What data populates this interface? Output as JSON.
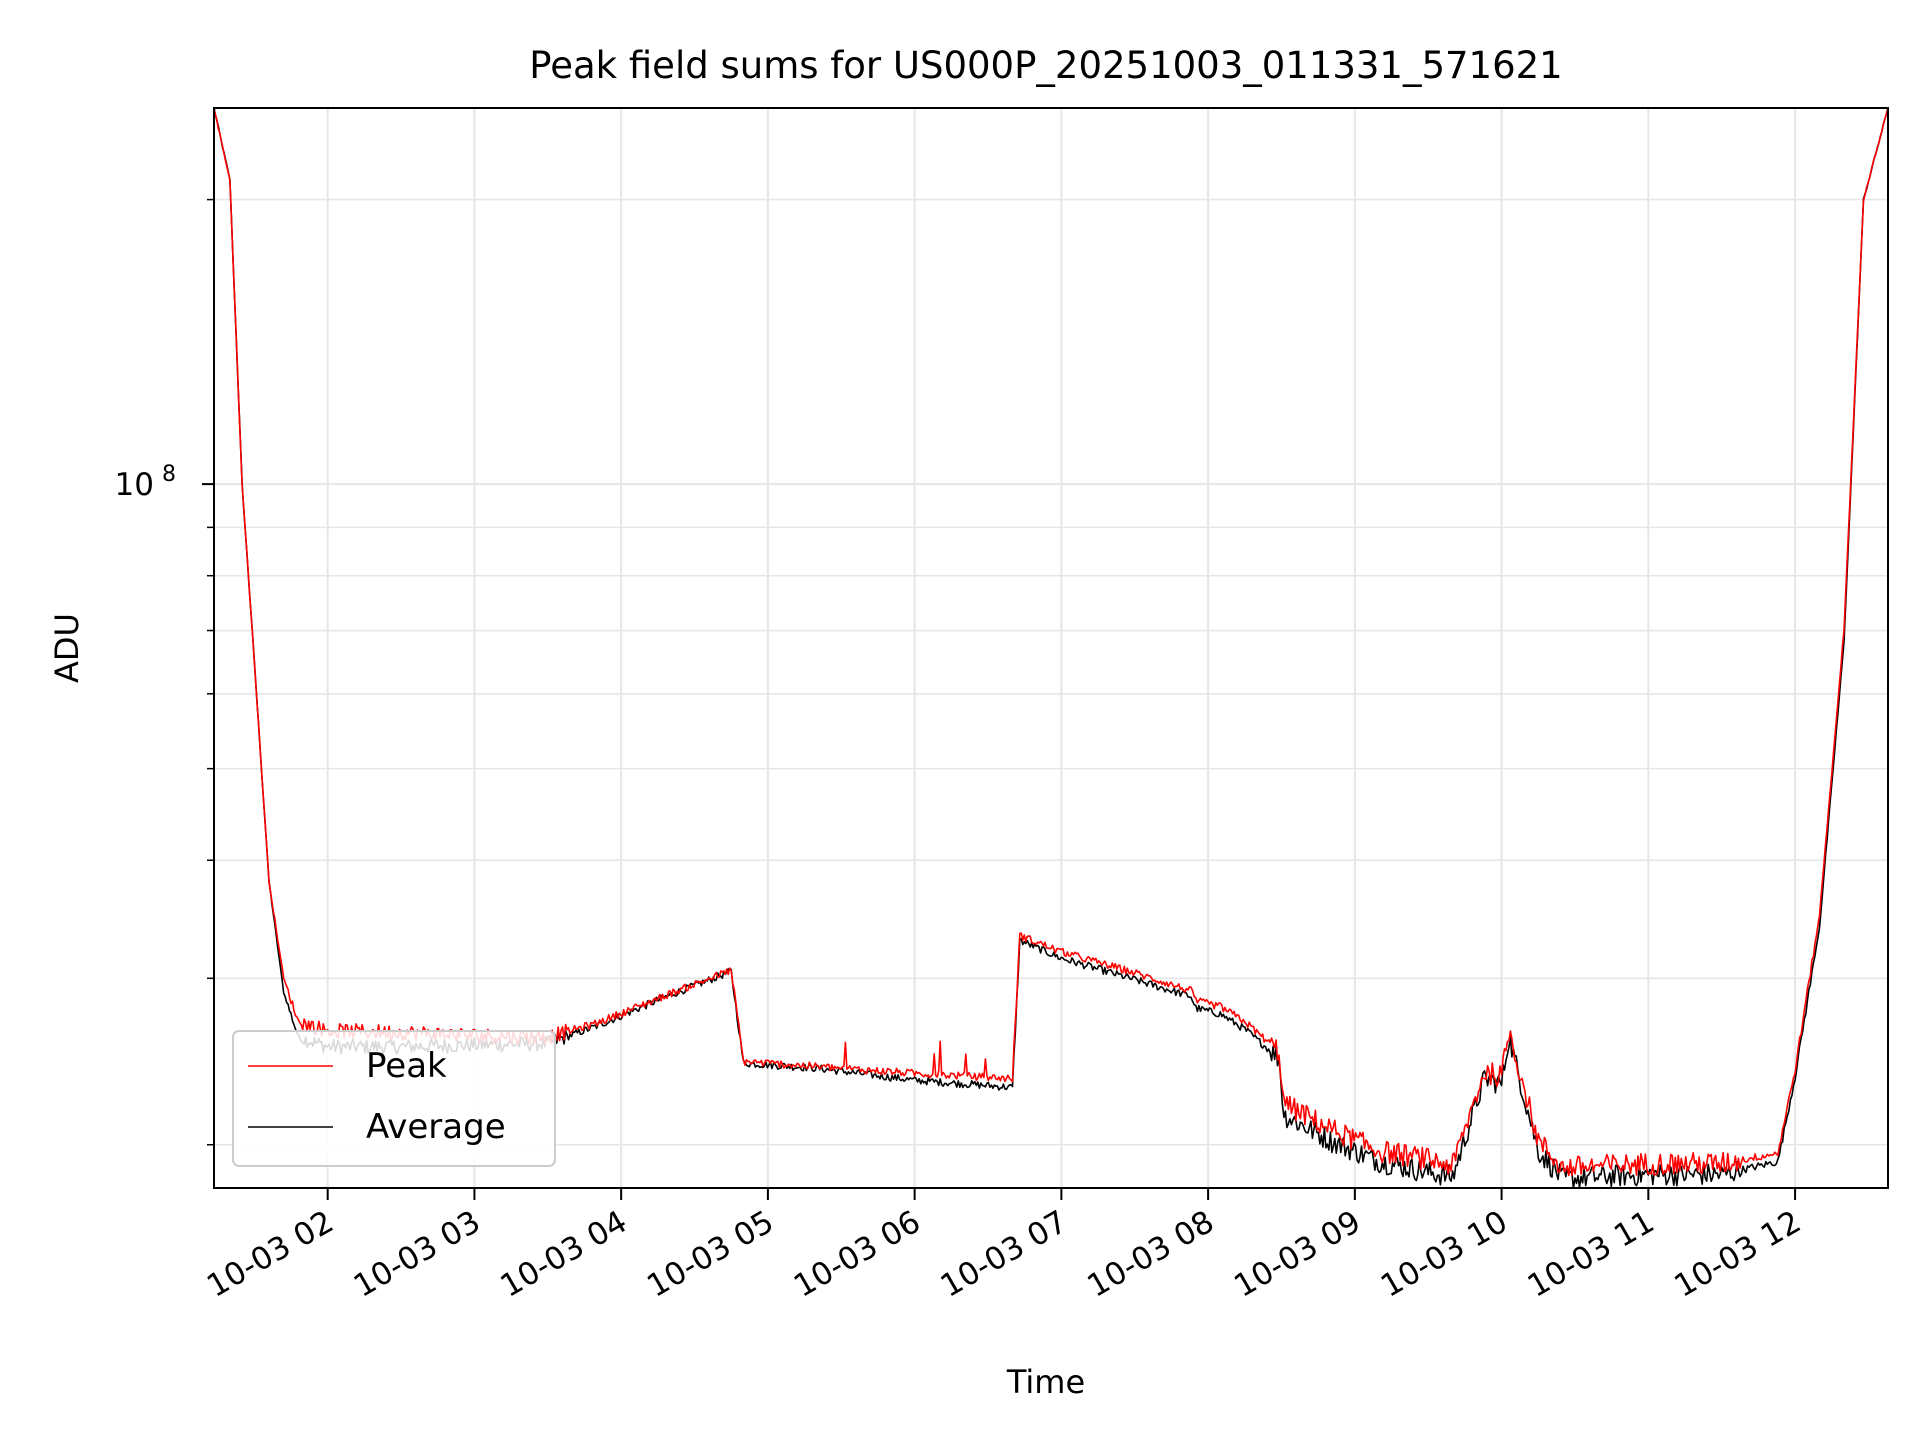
{
  "chart_data": {
    "type": "line",
    "title": "Peak field sums for US000P_20251003_011331_571621",
    "xlabel": "Time",
    "ylabel": "ADU",
    "y_scale": "log",
    "ylim": [
      18000000,
      250000000
    ],
    "xlim": [
      "2025-10-03 01:13:31",
      "2025-10-03 12:38:00"
    ],
    "grid": true,
    "legend_position": "lower-left",
    "x_tick_labels": [
      "10-03 02",
      "10-03 03",
      "10-03 04",
      "10-03 05",
      "10-03 06",
      "10-03 07",
      "10-03 08",
      "10-03 09",
      "10-03 10",
      "10-03 11",
      "10-03 12"
    ],
    "y_tick_labels": [
      {
        "value": 100000000,
        "base": "10",
        "exp": "8"
      }
    ],
    "series": [
      {
        "name": "Peak",
        "color": "#ff0000",
        "x": [
          "2025-10-03 01:13:31",
          "2025-10-03 01:20:00",
          "2025-10-03 01:25:00",
          "2025-10-03 01:30:00",
          "2025-10-03 01:36:00",
          "2025-10-03 01:42:00",
          "2025-10-03 01:48:00",
          "2025-10-03 02:00:00",
          "2025-10-03 02:30:00",
          "2025-10-03 03:00:00",
          "2025-10-03 03:30:00",
          "2025-10-03 03:50:00",
          "2025-10-03 04:20:00",
          "2025-10-03 04:45:00",
          "2025-10-03 04:50:00",
          "2025-10-03 05:20:00",
          "2025-10-03 06:00:00",
          "2025-10-03 06:40:00",
          "2025-10-03 06:43:00",
          "2025-10-03 07:00:00",
          "2025-10-03 07:30:00",
          "2025-10-03 07:53:00",
          "2025-10-03 07:55:00",
          "2025-10-03 08:05:00",
          "2025-10-03 08:15:00",
          "2025-10-03 08:29:00",
          "2025-10-03 08:31:00",
          "2025-10-03 08:50:00",
          "2025-10-03 09:10:00",
          "2025-10-03 09:30:00",
          "2025-10-03 09:40:00",
          "2025-10-03 09:53:00",
          "2025-10-03 10:00:00",
          "2025-10-03 10:03:00",
          "2025-10-03 10:15:00",
          "2025-10-03 10:25:00",
          "2025-10-03 10:40:00",
          "2025-10-03 11:00:00",
          "2025-10-03 11:30:00",
          "2025-10-03 11:53:00",
          "2025-10-03 12:00:00",
          "2025-10-03 12:10:00",
          "2025-10-03 12:20:00",
          "2025-10-03 12:28:00",
          "2025-10-03 12:38:00"
        ],
        "values": [
          250000000,
          210000000,
          100000000,
          65000000,
          38000000,
          30000000,
          27000000,
          26400000,
          26300000,
          26100000,
          26000000,
          26900000,
          28900000,
          30600000,
          24500000,
          24200000,
          23800000,
          23500000,
          33300000,
          32000000,
          30400000,
          29100000,
          28400000,
          28000000,
          27000000,
          25100000,
          22100000,
          20800000,
          19700000,
          19300000,
          19000000,
          23900000,
          23600000,
          26400000,
          20200000,
          18900000,
          19000000,
          19100000,
          19100000,
          19600000,
          24000000,
          35000000,
          70000000,
          200000000,
          250000000
        ]
      },
      {
        "name": "Average",
        "color": "#000000",
        "x": [
          "2025-10-03 01:13:31",
          "2025-10-03 01:20:00",
          "2025-10-03 01:25:00",
          "2025-10-03 01:30:00",
          "2025-10-03 01:36:00",
          "2025-10-03 01:42:00",
          "2025-10-03 01:48:00",
          "2025-10-03 02:00:00",
          "2025-10-03 02:30:00",
          "2025-10-03 03:00:00",
          "2025-10-03 03:30:00",
          "2025-10-03 03:50:00",
          "2025-10-03 04:20:00",
          "2025-10-03 04:45:00",
          "2025-10-03 04:50:00",
          "2025-10-03 05:20:00",
          "2025-10-03 06:00:00",
          "2025-10-03 06:40:00",
          "2025-10-03 06:43:00",
          "2025-10-03 07:00:00",
          "2025-10-03 07:30:00",
          "2025-10-03 07:53:00",
          "2025-10-03 07:55:00",
          "2025-10-03 08:05:00",
          "2025-10-03 08:15:00",
          "2025-10-03 08:29:00",
          "2025-10-03 08:31:00",
          "2025-10-03 08:50:00",
          "2025-10-03 09:10:00",
          "2025-10-03 09:30:00",
          "2025-10-03 09:40:00",
          "2025-10-03 09:53:00",
          "2025-10-03 10:00:00",
          "2025-10-03 10:03:00",
          "2025-10-03 10:15:00",
          "2025-10-03 10:25:00",
          "2025-10-03 10:40:00",
          "2025-10-03 11:00:00",
          "2025-10-03 11:30:00",
          "2025-10-03 11:53:00",
          "2025-10-03 12:00:00",
          "2025-10-03 12:10:00",
          "2025-10-03 12:20:00",
          "2025-10-03 12:28:00",
          "2025-10-03 12:38:00"
        ],
        "values": [
          250000000,
          210000000,
          100000000,
          65000000,
          38000000,
          29000000,
          26000000,
          25400000,
          25400000,
          25500000,
          25600000,
          26700000,
          28800000,
          30500000,
          24400000,
          24100000,
          23400000,
          23000000,
          32900000,
          31500000,
          29900000,
          28700000,
          27900000,
          27500000,
          26500000,
          24700000,
          21500000,
          20200000,
          19200000,
          18700000,
          18500000,
          23500000,
          23200000,
          26000000,
          19700000,
          18400000,
          18500000,
          18600000,
          18600000,
          19200000,
          23600000,
          34000000,
          68000000,
          200000000,
          250000000
        ]
      }
    ]
  }
}
